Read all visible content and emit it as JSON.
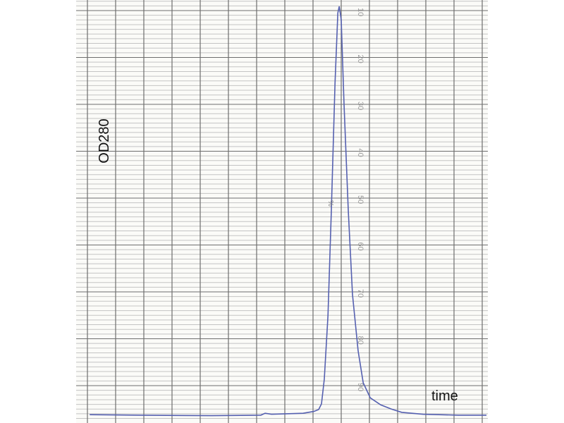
{
  "chart_data": {
    "type": "line",
    "title": "",
    "xlabel": "time",
    "ylabel": "OD280",
    "y_tick_labels": [
      "10",
      "20",
      "30",
      "40",
      "50",
      "60",
      "70",
      "80",
      "90"
    ],
    "ylim": [
      0,
      100
    ],
    "y_axis_inverted": true,
    "xlim": [
      0,
      14.6
    ],
    "grid": true,
    "annotation": "%",
    "colors": {
      "trace": "#5560b0",
      "major_grid": "#6e6e6e",
      "minor_grid": "#c4c4c4",
      "paper": "#fbfbf8",
      "tick_label": "#9a9a9a"
    },
    "series": [
      {
        "x": [
          0.08,
          1.9,
          4.4,
          6.15,
          6.3,
          6.53,
          7.65,
          8.03,
          8.2,
          8.3,
          8.4,
          8.53,
          8.65,
          8.78,
          8.88,
          8.93,
          9.0,
          9.1,
          9.25,
          9.4,
          9.6,
          9.78,
          10.03,
          10.4,
          10.78,
          11.15,
          11.9,
          13.15,
          14.15
        ],
        "y": [
          96.2,
          96.3,
          96.4,
          96.3,
          95.9,
          96.1,
          95.9,
          95.5,
          95.1,
          93.9,
          88.6,
          75.1,
          52.6,
          25.5,
          10.5,
          9.1,
          12.0,
          30.0,
          52.6,
          70.6,
          82.6,
          89.4,
          92.6,
          94.1,
          95.0,
          95.7,
          96.1,
          96.3,
          96.3
        ]
      }
    ]
  }
}
